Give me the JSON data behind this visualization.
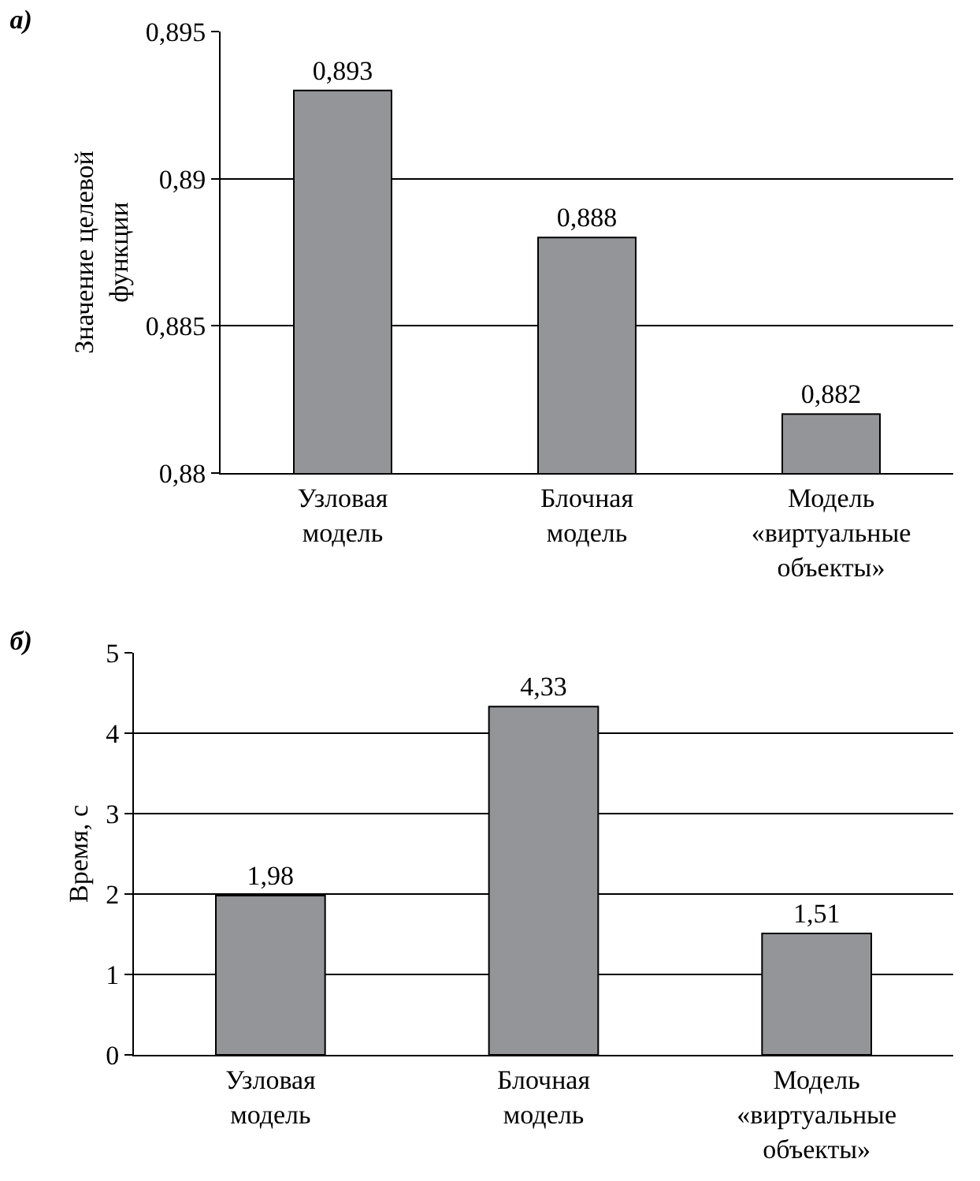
{
  "chart_data": [
    {
      "type": "bar",
      "title": "а)",
      "ylabel": "Значение целевой функции",
      "categories": [
        "Узловая модель",
        "Блочная модель",
        "Модель «виртуальные объекты»"
      ],
      "values": [
        0.893,
        0.888,
        0.882
      ],
      "value_labels": [
        "0,893",
        "0,888",
        "0,882"
      ],
      "color": "#939598",
      "ylim": [
        0.88,
        0.895
      ],
      "yticks": [
        {
          "value": 0.88,
          "label": "0,88"
        },
        {
          "value": 0.885,
          "label": "0,885"
        },
        {
          "value": 0.89,
          "label": "0,89"
        },
        {
          "value": 0.895,
          "label": "0,895"
        }
      ],
      "grid": "y"
    },
    {
      "type": "bar",
      "title": "б)",
      "ylabel": "Время, с",
      "categories": [
        "Узловая модель",
        "Блочная модель",
        "Модель «виртуальные объекты»"
      ],
      "values": [
        1.98,
        4.33,
        1.51
      ],
      "value_labels": [
        "1,98",
        "4,33",
        "1,51"
      ],
      "color": "#939598",
      "ylim": [
        0,
        5
      ],
      "yticks": [
        0,
        1,
        2,
        3,
        4,
        5
      ],
      "grid": "y"
    }
  ]
}
